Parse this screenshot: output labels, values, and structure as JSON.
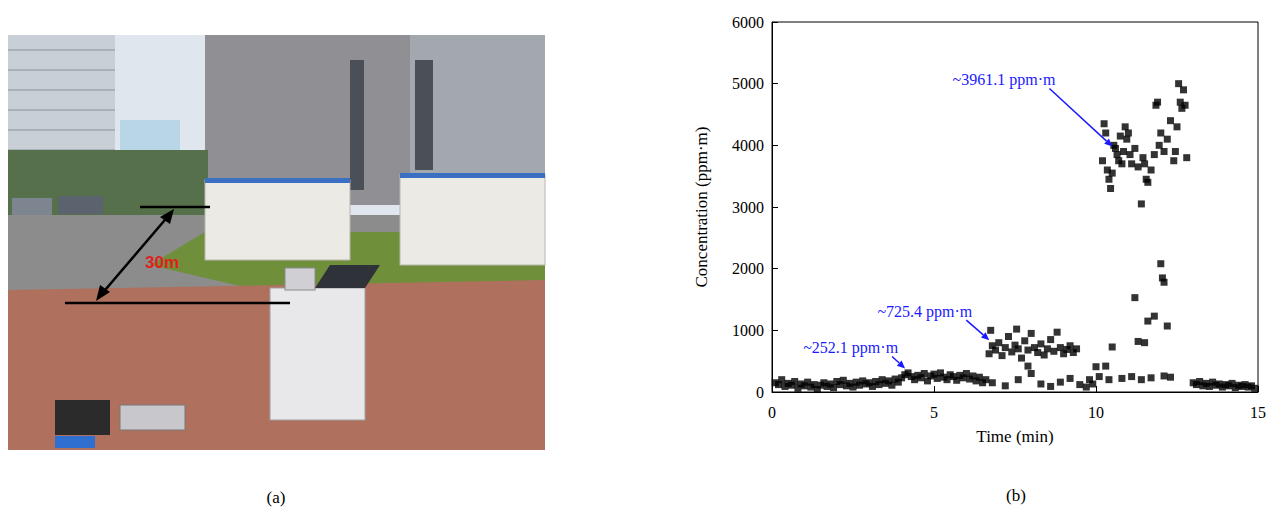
{
  "chart_data": {
    "type": "scatter",
    "panel_label": "(b)",
    "x_label": "Time (min)",
    "y_label": "Concentration (ppm·m)",
    "color": "#000000",
    "marker": "square",
    "grid": false,
    "xlim": [
      0,
      15
    ],
    "xticks": [
      0,
      5,
      10,
      15
    ],
    "ylim": [
      0,
      6000
    ],
    "yticks": [
      0,
      1000,
      2000,
      3000,
      4000,
      5000,
      6000
    ],
    "x": [
      0.1,
      0.2,
      0.3,
      0.4,
      0.5,
      0.6,
      0.7,
      0.8,
      0.9,
      1.0,
      1.1,
      1.2,
      1.3,
      1.4,
      1.5,
      1.6,
      1.7,
      1.8,
      1.9,
      2.0,
      2.1,
      2.2,
      2.3,
      2.4,
      2.5,
      2.6,
      2.7,
      2.8,
      2.9,
      3.0,
      3.1,
      3.2,
      3.3,
      3.4,
      3.5,
      3.6,
      3.7,
      3.8,
      3.9,
      4.0,
      4.1,
      4.2,
      4.3,
      4.4,
      4.5,
      4.6,
      4.7,
      4.8,
      4.9,
      5.0,
      5.1,
      5.2,
      5.3,
      5.4,
      5.5,
      5.6,
      5.7,
      5.8,
      5.9,
      6.0,
      6.1,
      6.2,
      6.3,
      6.4,
      6.5,
      6.6,
      6.7,
      6.75,
      6.8,
      6.9,
      7.0,
      7.1,
      7.2,
      7.3,
      7.4,
      7.5,
      7.55,
      7.6,
      7.7,
      7.8,
      7.9,
      8.0,
      8.1,
      8.2,
      8.3,
      8.4,
      8.5,
      8.6,
      8.7,
      8.8,
      8.9,
      9.0,
      9.1,
      9.2,
      9.3,
      9.4,
      6.8,
      7.2,
      7.6,
      7.9,
      8.0,
      8.3,
      8.6,
      8.9,
      9.2,
      9.5,
      9.7,
      9.8,
      9.9,
      10.0,
      10.1,
      10.2,
      10.25,
      10.3,
      10.35,
      10.4,
      10.45,
      10.5,
      10.55,
      10.6,
      10.65,
      10.7,
      10.75,
      10.8,
      10.85,
      10.9,
      10.95,
      11.0,
      11.05,
      11.1,
      11.2,
      11.3,
      11.4,
      11.45,
      11.5,
      11.55,
      11.6,
      11.7,
      11.8,
      11.85,
      11.9,
      11.95,
      12.0,
      12.1,
      12.2,
      12.3,
      12.4,
      12.45,
      12.5,
      12.55,
      12.6,
      12.65,
      12.7,
      12.75,
      12.8,
      10.3,
      10.5,
      11.2,
      11.3,
      11.5,
      11.6,
      11.8,
      12.0,
      12.05,
      12.1,
      12.2,
      10.4,
      10.8,
      11.1,
      11.4,
      11.7,
      12.1,
      12.3,
      13.0,
      13.1,
      13.2,
      13.3,
      13.4,
      13.5,
      13.6,
      13.7,
      13.8,
      13.9,
      14.0,
      14.1,
      14.2,
      14.3,
      14.4,
      14.5,
      14.6,
      14.7,
      14.8,
      14.9
    ],
    "values": [
      150,
      120,
      200,
      90,
      140,
      110,
      170,
      60,
      130,
      100,
      160,
      80,
      120,
      40,
      110,
      150,
      90,
      130,
      70,
      170,
      120,
      190,
      100,
      140,
      80,
      160,
      110,
      180,
      130,
      150,
      90,
      170,
      120,
      200,
      140,
      180,
      110,
      210,
      160,
      230,
      280,
      310,
      250,
      200,
      270,
      230,
      300,
      180,
      260,
      290,
      220,
      310,
      240,
      200,
      280,
      250,
      190,
      270,
      230,
      300,
      210,
      260,
      180,
      240,
      150,
      200,
      620,
      1000,
      750,
      680,
      800,
      590,
      720,
      900,
      650,
      760,
      1020,
      700,
      550,
      830,
      680,
      950,
      720,
      640,
      780,
      600,
      700,
      850,
      660,
      970,
      720,
      620,
      690,
      750,
      640,
      700,
      150,
      100,
      200,
      420,
      300,
      130,
      90,
      160,
      220,
      120,
      80,
      200,
      130,
      410,
      250,
      3750,
      4350,
      4200,
      3600,
      3450,
      3300,
      3550,
      4000,
      3950,
      3850,
      3750,
      4150,
      3700,
      3900,
      4300,
      4100,
      4200,
      3850,
      3700,
      3950,
      3650,
      3050,
      3800,
      3700,
      3450,
      3400,
      3600,
      3850,
      4650,
      4700,
      4000,
      4200,
      3900,
      4100,
      4400,
      3750,
      3900,
      4300,
      5000,
      4700,
      4600,
      4900,
      4650,
      3800,
      420,
      730,
      1530,
      820,
      800,
      1150,
      1230,
      2080,
      1850,
      1780,
      1070,
      200,
      220,
      250,
      200,
      230,
      260,
      240,
      150,
      120,
      170,
      100,
      140,
      90,
      160,
      110,
      130,
      80,
      120,
      100,
      140,
      70,
      110,
      90,
      120,
      80,
      100,
      60
    ],
    "annotations": [
      {
        "text": "~252.1 ppm·m",
        "x": 4.2,
        "y": 300,
        "color": "#1a1aff"
      },
      {
        "text": "~725.4 ppm·m",
        "x": 6.8,
        "y": 760,
        "color": "#1a1aff"
      },
      {
        "text": "~3961.1 ppm·m",
        "x": 10.6,
        "y": 3900,
        "color": "#1a1aff"
      }
    ]
  },
  "photo_panel": {
    "panel_label": "(a)",
    "annotation": "30m",
    "annotation_color": "#e02020"
  }
}
